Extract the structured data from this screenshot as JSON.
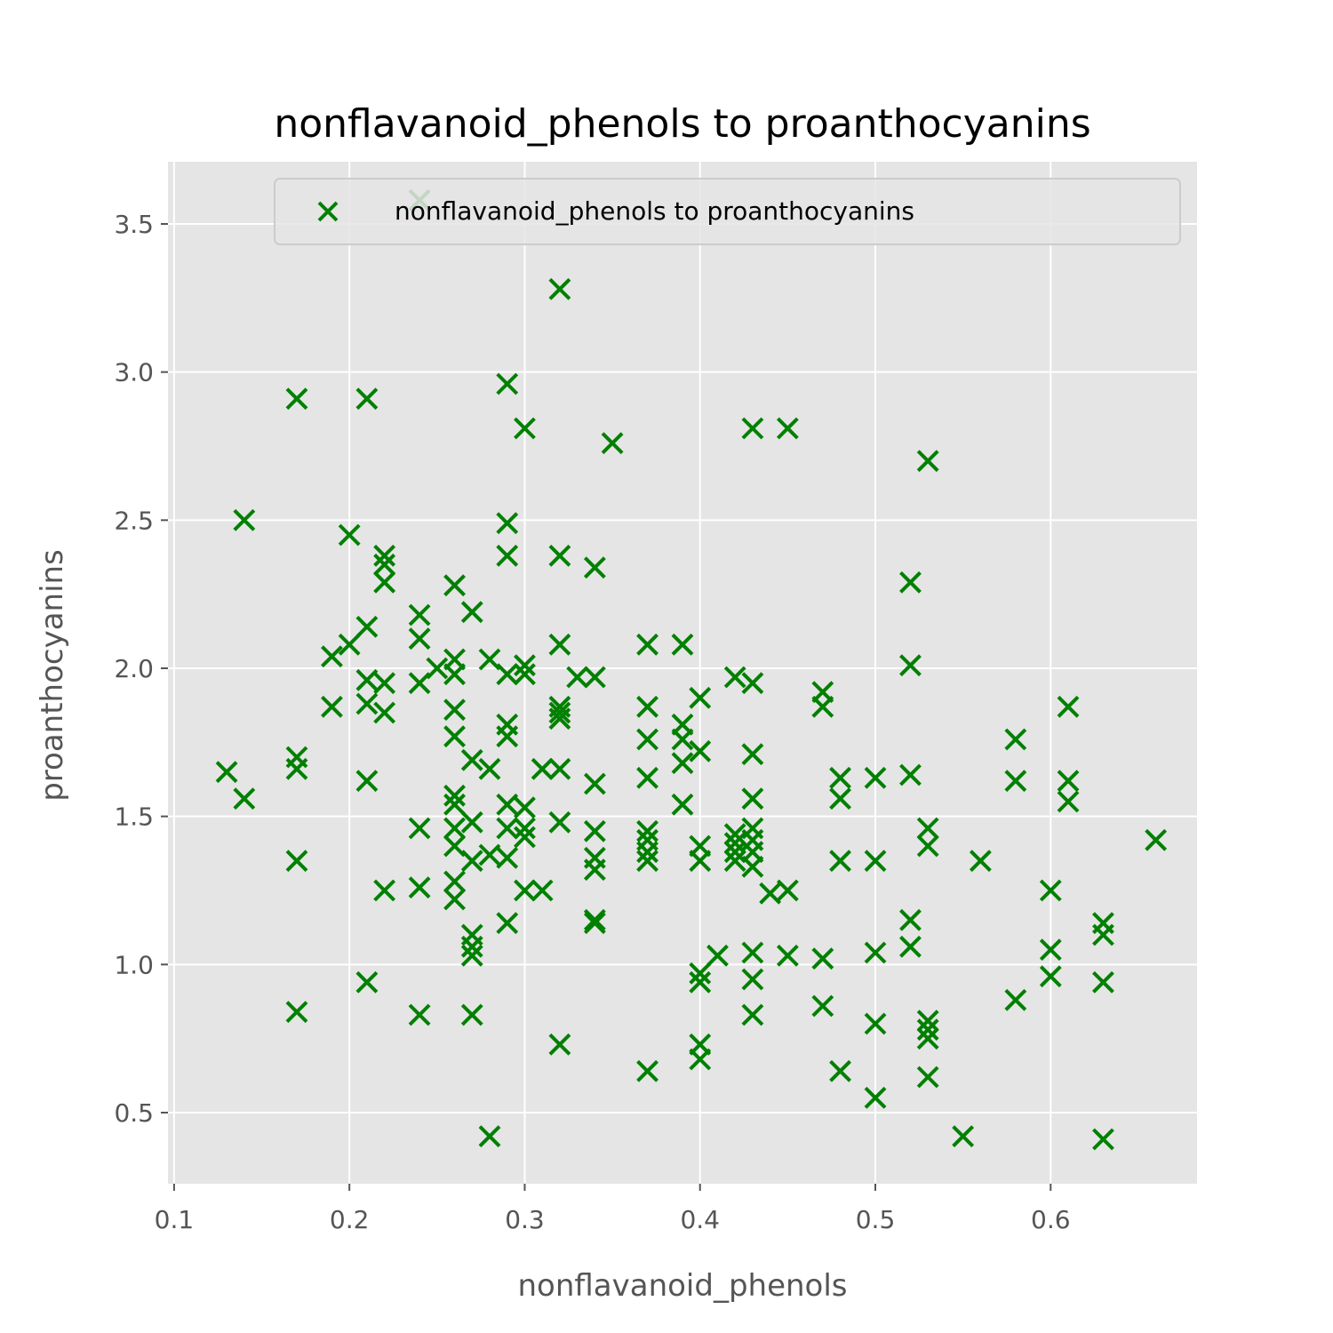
{
  "chart_data": {
    "type": "scatter",
    "title": "nonflavanoid_phenols to proanthocyanins",
    "xlabel": "nonflavanoid_phenols",
    "ylabel": "proanthocyanins",
    "xlim": [
      0.0965,
      0.6835
    ],
    "ylim": [
      0.26,
      3.71
    ],
    "xticks": [
      "0.1",
      "0.2",
      "0.3",
      "0.4",
      "0.5",
      "0.6"
    ],
    "yticks": [
      "0.5",
      "1.0",
      "1.5",
      "2.0",
      "2.5",
      "3.0",
      "3.5"
    ],
    "grid": true,
    "background_color": "#e5e5e5",
    "marker": "x",
    "marker_color": "#008000",
    "legend": {
      "placement": "top-right",
      "entries": [
        "nonflavanoid_phenols to proanthocyanins"
      ]
    },
    "series": [
      {
        "name": "nonflavanoid_phenols to proanthocyanins",
        "points": [
          [
            0.13,
            1.65
          ],
          [
            0.14,
            2.5
          ],
          [
            0.14,
            1.56
          ],
          [
            0.17,
            2.91
          ],
          [
            0.17,
            1.7
          ],
          [
            0.17,
            1.66
          ],
          [
            0.17,
            1.35
          ],
          [
            0.17,
            0.84
          ],
          [
            0.19,
            2.04
          ],
          [
            0.19,
            1.87
          ],
          [
            0.2,
            2.45
          ],
          [
            0.2,
            2.08
          ],
          [
            0.21,
            2.91
          ],
          [
            0.21,
            2.14
          ],
          [
            0.21,
            1.96
          ],
          [
            0.21,
            1.88
          ],
          [
            0.21,
            1.62
          ],
          [
            0.21,
            0.94
          ],
          [
            0.22,
            2.38
          ],
          [
            0.22,
            2.35
          ],
          [
            0.22,
            2.29
          ],
          [
            0.22,
            1.95
          ],
          [
            0.22,
            1.85
          ],
          [
            0.22,
            1.25
          ],
          [
            0.24,
            3.58
          ],
          [
            0.24,
            2.18
          ],
          [
            0.24,
            2.1
          ],
          [
            0.24,
            1.95
          ],
          [
            0.24,
            1.46
          ],
          [
            0.24,
            1.26
          ],
          [
            0.24,
            0.83
          ],
          [
            0.25,
            2.0
          ],
          [
            0.26,
            2.28
          ],
          [
            0.26,
            2.03
          ],
          [
            0.26,
            1.98
          ],
          [
            0.26,
            1.86
          ],
          [
            0.26,
            1.77
          ],
          [
            0.26,
            1.57
          ],
          [
            0.26,
            1.54
          ],
          [
            0.26,
            1.46
          ],
          [
            0.26,
            1.4
          ],
          [
            0.26,
            1.28
          ],
          [
            0.26,
            1.22
          ],
          [
            0.27,
            2.19
          ],
          [
            0.27,
            1.69
          ],
          [
            0.27,
            1.48
          ],
          [
            0.27,
            1.35
          ],
          [
            0.27,
            1.1
          ],
          [
            0.27,
            1.06
          ],
          [
            0.27,
            1.03
          ],
          [
            0.27,
            0.83
          ],
          [
            0.28,
            2.03
          ],
          [
            0.28,
            1.66
          ],
          [
            0.28,
            1.37
          ],
          [
            0.28,
            0.42
          ],
          [
            0.29,
            2.96
          ],
          [
            0.29,
            2.49
          ],
          [
            0.29,
            2.38
          ],
          [
            0.29,
            1.98
          ],
          [
            0.29,
            1.81
          ],
          [
            0.29,
            1.77
          ],
          [
            0.29,
            1.54
          ],
          [
            0.29,
            1.46
          ],
          [
            0.29,
            1.36
          ],
          [
            0.29,
            1.14
          ],
          [
            0.3,
            2.81
          ],
          [
            0.3,
            2.01
          ],
          [
            0.3,
            1.98
          ],
          [
            0.3,
            1.53
          ],
          [
            0.3,
            1.46
          ],
          [
            0.3,
            1.43
          ],
          [
            0.3,
            1.25
          ],
          [
            0.31,
            1.66
          ],
          [
            0.31,
            1.25
          ],
          [
            0.32,
            3.28
          ],
          [
            0.32,
            2.38
          ],
          [
            0.32,
            2.08
          ],
          [
            0.32,
            1.87
          ],
          [
            0.32,
            1.85
          ],
          [
            0.32,
            1.83
          ],
          [
            0.32,
            1.66
          ],
          [
            0.32,
            1.48
          ],
          [
            0.32,
            0.73
          ],
          [
            0.33,
            1.97
          ],
          [
            0.34,
            2.34
          ],
          [
            0.34,
            1.97
          ],
          [
            0.34,
            1.61
          ],
          [
            0.34,
            1.45
          ],
          [
            0.34,
            1.36
          ],
          [
            0.34,
            1.32
          ],
          [
            0.34,
            1.15
          ],
          [
            0.34,
            1.14
          ],
          [
            0.35,
            2.76
          ],
          [
            0.37,
            2.08
          ],
          [
            0.37,
            1.87
          ],
          [
            0.37,
            1.76
          ],
          [
            0.37,
            1.63
          ],
          [
            0.37,
            1.45
          ],
          [
            0.37,
            1.42
          ],
          [
            0.37,
            1.38
          ],
          [
            0.37,
            1.35
          ],
          [
            0.37,
            0.64
          ],
          [
            0.39,
            2.08
          ],
          [
            0.39,
            1.81
          ],
          [
            0.39,
            1.76
          ],
          [
            0.39,
            1.68
          ],
          [
            0.39,
            1.54
          ],
          [
            0.4,
            1.9
          ],
          [
            0.4,
            1.72
          ],
          [
            0.4,
            1.4
          ],
          [
            0.4,
            1.35
          ],
          [
            0.4,
            0.97
          ],
          [
            0.4,
            0.94
          ],
          [
            0.4,
            0.73
          ],
          [
            0.4,
            0.68
          ],
          [
            0.41,
            1.03
          ],
          [
            0.42,
            1.97
          ],
          [
            0.42,
            1.44
          ],
          [
            0.42,
            1.41
          ],
          [
            0.42,
            1.38
          ],
          [
            0.42,
            1.35
          ],
          [
            0.43,
            2.81
          ],
          [
            0.43,
            1.95
          ],
          [
            0.43,
            1.71
          ],
          [
            0.43,
            1.56
          ],
          [
            0.43,
            1.46
          ],
          [
            0.43,
            1.42
          ],
          [
            0.43,
            1.38
          ],
          [
            0.43,
            1.33
          ],
          [
            0.43,
            1.04
          ],
          [
            0.43,
            0.95
          ],
          [
            0.43,
            0.83
          ],
          [
            0.44,
            1.24
          ],
          [
            0.45,
            2.81
          ],
          [
            0.45,
            1.25
          ],
          [
            0.45,
            1.03
          ],
          [
            0.47,
            1.92
          ],
          [
            0.47,
            1.87
          ],
          [
            0.47,
            1.02
          ],
          [
            0.47,
            0.86
          ],
          [
            0.48,
            1.63
          ],
          [
            0.48,
            1.56
          ],
          [
            0.48,
            1.35
          ],
          [
            0.48,
            0.64
          ],
          [
            0.5,
            1.63
          ],
          [
            0.5,
            1.35
          ],
          [
            0.5,
            1.04
          ],
          [
            0.5,
            0.8
          ],
          [
            0.5,
            0.55
          ],
          [
            0.52,
            2.29
          ],
          [
            0.52,
            2.01
          ],
          [
            0.52,
            1.64
          ],
          [
            0.52,
            1.15
          ],
          [
            0.52,
            1.06
          ],
          [
            0.53,
            2.7
          ],
          [
            0.53,
            1.46
          ],
          [
            0.53,
            1.4
          ],
          [
            0.53,
            0.81
          ],
          [
            0.53,
            0.78
          ],
          [
            0.53,
            0.75
          ],
          [
            0.53,
            0.62
          ],
          [
            0.55,
            0.42
          ],
          [
            0.56,
            1.35
          ],
          [
            0.58,
            1.76
          ],
          [
            0.58,
            1.62
          ],
          [
            0.58,
            0.88
          ],
          [
            0.6,
            1.25
          ],
          [
            0.6,
            1.05
          ],
          [
            0.6,
            0.96
          ],
          [
            0.61,
            1.87
          ],
          [
            0.61,
            1.62
          ],
          [
            0.61,
            1.55
          ],
          [
            0.63,
            1.14
          ],
          [
            0.63,
            1.1
          ],
          [
            0.63,
            0.94
          ],
          [
            0.63,
            0.41
          ],
          [
            0.66,
            1.42
          ]
        ]
      }
    ]
  }
}
